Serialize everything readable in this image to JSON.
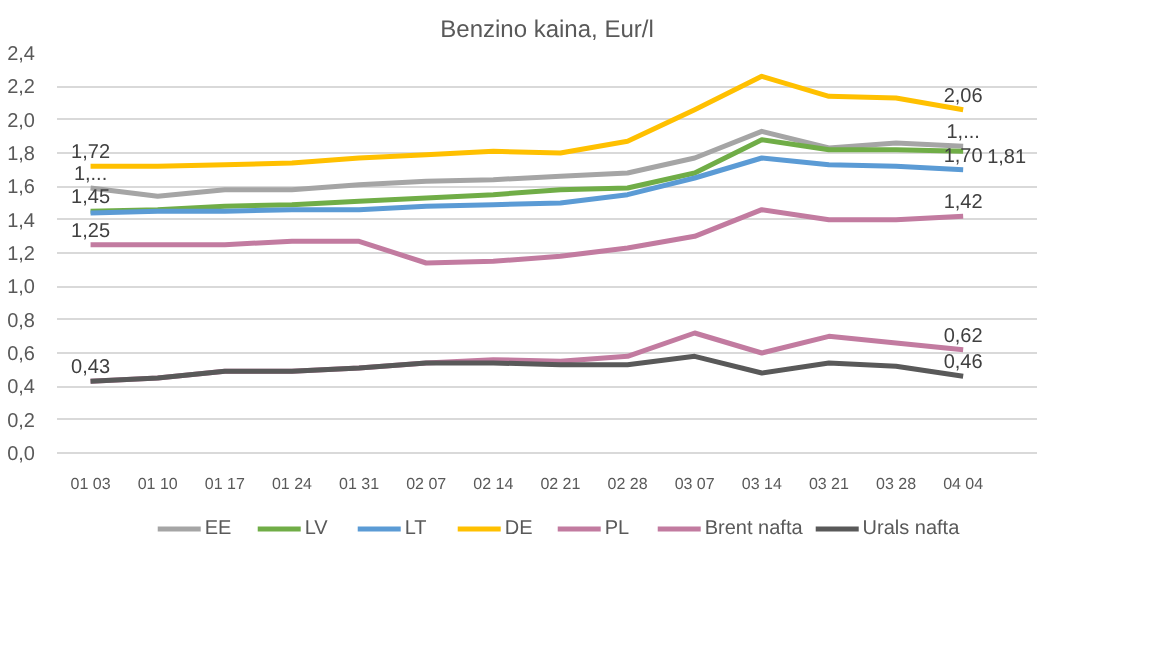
{
  "chart_data": {
    "type": "line",
    "title": "Benzino kaina, Eur/l",
    "categories": [
      "01 03",
      "01 10",
      "01 17",
      "01 24",
      "01 31",
      "02 07",
      "02 14",
      "02 21",
      "02 28",
      "03 07",
      "03 14",
      "03 21",
      "03 28",
      "04 04"
    ],
    "series": [
      {
        "name": "EE",
        "color": "#a5a5a5",
        "values": [
          1.59,
          1.54,
          1.58,
          1.58,
          1.61,
          1.63,
          1.64,
          1.66,
          1.68,
          1.77,
          1.93,
          1.83,
          1.86,
          1.84
        ],
        "value_labels": [
          "1,...",
          null,
          null,
          null,
          null,
          null,
          null,
          null,
          null,
          null,
          null,
          null,
          null,
          "1,..."
        ]
      },
      {
        "name": "LV",
        "color": "#70ad47",
        "values": [
          1.45,
          1.46,
          1.48,
          1.49,
          1.51,
          1.53,
          1.55,
          1.58,
          1.59,
          1.68,
          1.88,
          1.82,
          1.82,
          1.81
        ],
        "value_labels": [
          "1,45",
          null,
          null,
          null,
          null,
          null,
          null,
          null,
          null,
          null,
          null,
          null,
          null,
          "1,81"
        ]
      },
      {
        "name": "LT",
        "color": "#5b9bd5",
        "values": [
          1.44,
          1.45,
          1.45,
          1.46,
          1.46,
          1.48,
          1.49,
          1.5,
          1.55,
          1.65,
          1.77,
          1.73,
          1.72,
          1.7
        ],
        "value_labels": [
          null,
          null,
          null,
          null,
          null,
          null,
          null,
          null,
          null,
          null,
          null,
          null,
          null,
          "1,70"
        ]
      },
      {
        "name": "DE",
        "color": "#ffc000",
        "values": [
          1.72,
          1.72,
          1.73,
          1.74,
          1.77,
          1.79,
          1.81,
          1.8,
          1.87,
          2.06,
          2.26,
          2.14,
          2.13,
          2.06
        ],
        "value_labels": [
          "1,72",
          null,
          null,
          null,
          null,
          null,
          null,
          null,
          null,
          null,
          null,
          null,
          null,
          "2,06"
        ]
      },
      {
        "name": "PL",
        "color": "#c27ba0",
        "values": [
          1.25,
          1.25,
          1.25,
          1.27,
          1.27,
          1.14,
          1.15,
          1.18,
          1.23,
          1.3,
          1.46,
          1.4,
          1.4,
          1.42
        ],
        "value_labels": [
          "1,25",
          null,
          null,
          null,
          null,
          null,
          null,
          null,
          null,
          null,
          null,
          null,
          null,
          "1,42"
        ]
      },
      {
        "name": "Brent nafta",
        "color": "#c27ba0",
        "values": [
          0.43,
          0.45,
          0.49,
          0.49,
          0.51,
          0.54,
          0.56,
          0.55,
          0.58,
          0.72,
          0.6,
          0.7,
          0.66,
          0.62
        ],
        "value_labels": [
          null,
          null,
          null,
          null,
          null,
          null,
          null,
          null,
          null,
          null,
          null,
          null,
          null,
          "0,62"
        ]
      },
      {
        "name": "Urals nafta",
        "color": "#595959",
        "values": [
          0.43,
          0.45,
          0.49,
          0.49,
          0.51,
          0.54,
          0.54,
          0.53,
          0.53,
          0.58,
          0.48,
          0.54,
          0.52,
          0.46
        ],
        "value_labels": [
          "0,43",
          null,
          null,
          null,
          null,
          null,
          null,
          null,
          null,
          null,
          null,
          null,
          null,
          "0,46"
        ]
      }
    ],
    "ylim": [
      0,
      2.4
    ],
    "yticks": [
      {
        "value": 0,
        "label": "0,0"
      },
      {
        "value": 0.2,
        "label": "0,2"
      },
      {
        "value": 0.4,
        "label": "0,4"
      },
      {
        "value": 0.6,
        "label": "0,6"
      },
      {
        "value": 0.8,
        "label": "0,8"
      },
      {
        "value": 1.0,
        "label": "1,0"
      },
      {
        "value": 1.2,
        "label": "1,2"
      },
      {
        "value": 1.4,
        "label": "1,4"
      },
      {
        "value": 1.6,
        "label": "1,6"
      },
      {
        "value": 1.8,
        "label": "1,8"
      },
      {
        "value": 2.0,
        "label": "2,0"
      },
      {
        "value": 2.2,
        "label": "2,2"
      },
      {
        "value": 2.4,
        "label": "2,4"
      }
    ],
    "grid": "y",
    "legend": "bottom",
    "marker": "none",
    "line_style": "solid"
  }
}
